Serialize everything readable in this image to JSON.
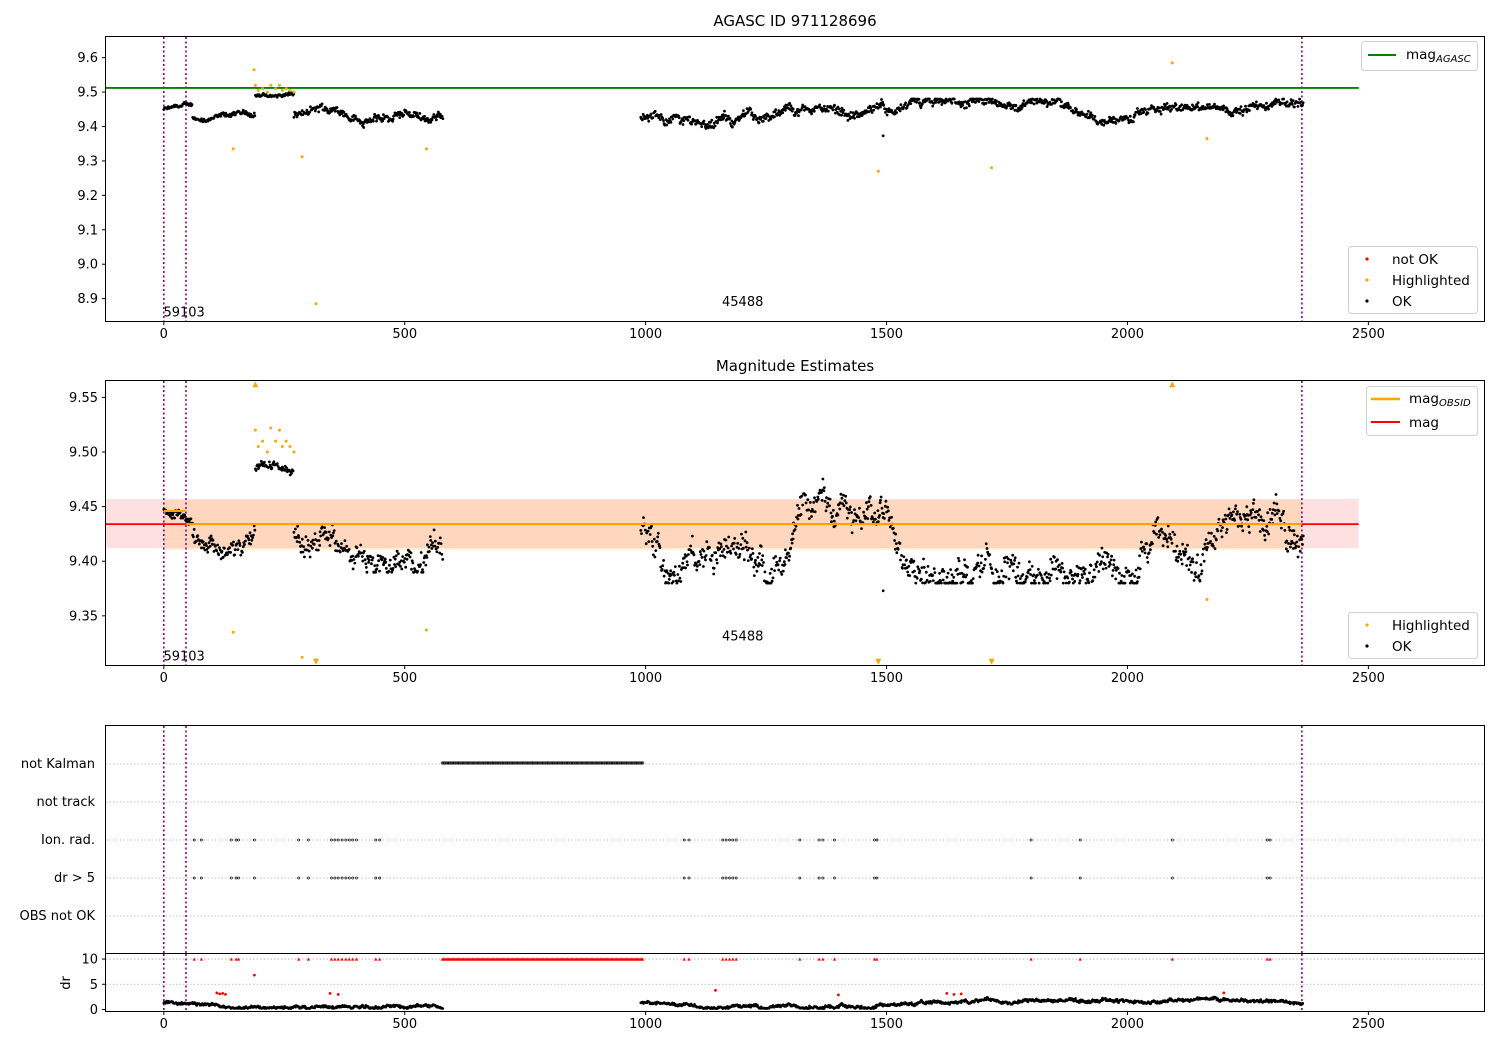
{
  "chart_data": [
    {
      "id": "top",
      "type": "scatter",
      "title": "AGASC ID 971128696",
      "xlim": [
        -120,
        2740
      ],
      "ylim": [
        8.835,
        9.66
      ],
      "xticks": [
        0,
        500,
        1000,
        1500,
        2000,
        2500
      ],
      "xtick_labels": [
        "0",
        "500",
        "1000",
        "1500",
        "2000",
        "2500"
      ],
      "yticks": [
        8.9,
        9.0,
        9.1,
        9.2,
        9.3,
        9.4,
        9.5,
        9.6
      ],
      "ytick_labels": [
        "8.9",
        "9.0",
        "9.1",
        "9.2",
        "9.3",
        "9.4",
        "9.5",
        "9.6"
      ],
      "hline": {
        "name": "mag_AGASC",
        "y": 9.512,
        "x0": -120,
        "x1": 2480,
        "color": "#008000"
      },
      "vlines": [
        0,
        46,
        2362
      ],
      "annotations": [
        {
          "text": "59103",
          "x": 20,
          "y": 8.86
        },
        {
          "text": "45488",
          "x": 1200,
          "y": 8.89
        }
      ],
      "series": [
        {
          "name": "not OK",
          "color": "#ff0000",
          "points": []
        },
        {
          "name": "Highlighted",
          "color": "#ffa500",
          "points": [
            [
              144,
              9.335
            ],
            [
              187,
              9.565
            ],
            [
              190,
              9.52
            ],
            [
              196,
              9.505
            ],
            [
              205,
              9.51
            ],
            [
              215,
              9.5
            ],
            [
              222,
              9.52
            ],
            [
              232,
              9.51
            ],
            [
              240,
              9.52
            ],
            [
              246,
              9.505
            ],
            [
              254,
              9.51
            ],
            [
              262,
              9.505
            ],
            [
              270,
              9.5
            ],
            [
              287,
              9.312
            ],
            [
              316,
              8.885
            ],
            [
              545,
              9.335
            ],
            [
              1483,
              9.27
            ],
            [
              1718,
              9.28
            ],
            [
              2093,
              9.585
            ],
            [
              2165,
              9.365
            ]
          ]
        },
        {
          "name": "OK",
          "color": "#000000",
          "segments": [
            [
              0,
              60,
              9.43,
              9.47
            ],
            [
              60,
              190,
              9.4,
              9.45
            ],
            [
              190,
              270,
              9.47,
              9.51
            ],
            [
              270,
              580,
              9.39,
              9.48
            ],
            [
              990,
              2365,
              9.38,
              9.48
            ]
          ],
          "outliers": [
            [
              1493,
              9.373
            ]
          ]
        }
      ],
      "legend_upper": [
        "mag_AGASC"
      ],
      "legend_lower": [
        "not OK",
        "Highlighted",
        "OK"
      ]
    },
    {
      "id": "middle",
      "type": "scatter",
      "title": "Magnitude Estimates",
      "xlim": [
        -120,
        2740
      ],
      "ylim": [
        9.305,
        9.565
      ],
      "xticks": [
        0,
        500,
        1000,
        1500,
        2000,
        2500
      ],
      "xtick_labels": [
        "0",
        "500",
        "1000",
        "1500",
        "2000",
        "2500"
      ],
      "yticks": [
        9.35,
        9.4,
        9.45,
        9.5,
        9.55
      ],
      "ytick_labels": [
        "9.35",
        "9.40",
        "9.45",
        "9.50",
        "9.55"
      ],
      "mag": {
        "name": "mag",
        "y": 9.434,
        "band": [
          9.412,
          9.457
        ],
        "x0": -120,
        "x1": 2480,
        "color": "#ff0000"
      },
      "mag_obsid": [
        {
          "x0": 0,
          "x1": 46,
          "y": 9.446,
          "band": [
            9.41,
            9.456
          ]
        },
        {
          "x0": 46,
          "x1": 2362,
          "y": 9.434,
          "band": [
            9.41,
            9.456
          ]
        }
      ],
      "vlines": [
        0,
        46,
        2362
      ],
      "annotations": [
        {
          "text": "59103",
          "x": 20,
          "y": 9.313
        },
        {
          "text": "45488",
          "x": 1200,
          "y": 9.331
        }
      ],
      "series": [
        {
          "name": "Highlighted",
          "color": "#ffa500",
          "points": [
            [
              144,
              9.335
            ],
            [
              190,
              9.52
            ],
            [
              196,
              9.505
            ],
            [
              205,
              9.51
            ],
            [
              215,
              9.5
            ],
            [
              222,
              9.522
            ],
            [
              232,
              9.51
            ],
            [
              240,
              9.52
            ],
            [
              246,
              9.505
            ],
            [
              254,
              9.51
            ],
            [
              262,
              9.505
            ],
            [
              270,
              9.5
            ],
            [
              287,
              9.312
            ],
            [
              545,
              9.337
            ],
            [
              2165,
              9.365
            ]
          ],
          "clipped": [
            [
              190,
              9.562,
              "up"
            ],
            [
              2093,
              9.562,
              "up"
            ],
            [
              316,
              9.308,
              "down"
            ],
            [
              1483,
              9.308,
              "down"
            ],
            [
              1718,
              9.308,
              "down"
            ]
          ]
        },
        {
          "name": "OK",
          "color": "#000000",
          "segments": [
            [
              0,
              60,
              9.43,
              9.46
            ],
            [
              60,
              190,
              9.39,
              9.45
            ],
            [
              190,
              270,
              9.47,
              9.5
            ],
            [
              270,
              580,
              9.39,
              9.48
            ],
            [
              990,
              2365,
              9.38,
              9.48
            ]
          ],
          "outliers": [
            [
              1493,
              9.373
            ]
          ]
        }
      ],
      "legend_upper": [
        "mag_OBSID",
        "mag"
      ],
      "legend_lower": [
        "Highlighted",
        "OK"
      ]
    },
    {
      "id": "flags",
      "type": "scatter",
      "xlim": [
        -120,
        2740
      ],
      "xticks": [
        0,
        500,
        1000,
        1500,
        2000,
        2500
      ],
      "categories": [
        "not Kalman",
        "not track",
        "Ion. rad.",
        "dr > 5",
        "OBS not OK"
      ],
      "vlines": [
        0,
        46,
        2362
      ],
      "not_kalman_range": [
        578,
        995
      ],
      "flag_times": [
        [
          63,
          78,
          140,
          150,
          155,
          188,
          280,
          300
        ],
        [
          348,
          355,
          362,
          370,
          378,
          385,
          392,
          400,
          440,
          448
        ],
        [
          1080,
          1090,
          1160,
          1167,
          1174,
          1181,
          1188,
          1320,
          1360,
          1368,
          1392,
          1475,
          1480,
          1800,
          1902,
          2093,
          2290,
          2296
        ]
      ]
    },
    {
      "id": "dr",
      "type": "scatter",
      "ylabel": "dr",
      "xlim": [
        -120,
        2740
      ],
      "ylim": [
        -0.3,
        11
      ],
      "xticks": [
        0,
        500,
        1000,
        1500,
        2000,
        2500
      ],
      "xtick_labels": [
        "0",
        "500",
        "1000",
        "1500",
        "2000",
        "2500"
      ],
      "yticks": [
        0,
        5,
        10
      ],
      "ytick_labels": [
        "0",
        "5",
        "10"
      ],
      "vlines": [
        0,
        46,
        2362
      ],
      "segments": [
        [
          0,
          580,
          0.2,
          2.3
        ],
        [
          990,
          2365,
          0.2,
          2.5
        ]
      ],
      "red_points": [
        [
          110,
          3.3
        ],
        [
          116,
          3.1
        ],
        [
          122,
          3.2
        ],
        [
          128,
          3.0
        ],
        [
          188,
          6.8
        ],
        [
          345,
          3.2
        ],
        [
          362,
          3.0
        ],
        [
          1145,
          3.8
        ],
        [
          1400,
          2.9
        ],
        [
          1625,
          3.2
        ],
        [
          1640,
          3.0
        ],
        [
          1655,
          3.1
        ],
        [
          2200,
          3.3
        ]
      ],
      "red_top_times": [
        63,
        78,
        140,
        150,
        155,
        280,
        300,
        348,
        355,
        362,
        370,
        378,
        385,
        392,
        400,
        440,
        448,
        1080,
        1090,
        1160,
        1167,
        1174,
        1181,
        1188,
        1320,
        1360,
        1368,
        1392,
        1475,
        1480,
        1800,
        1902,
        2093,
        2290,
        2296
      ]
    }
  ]
}
